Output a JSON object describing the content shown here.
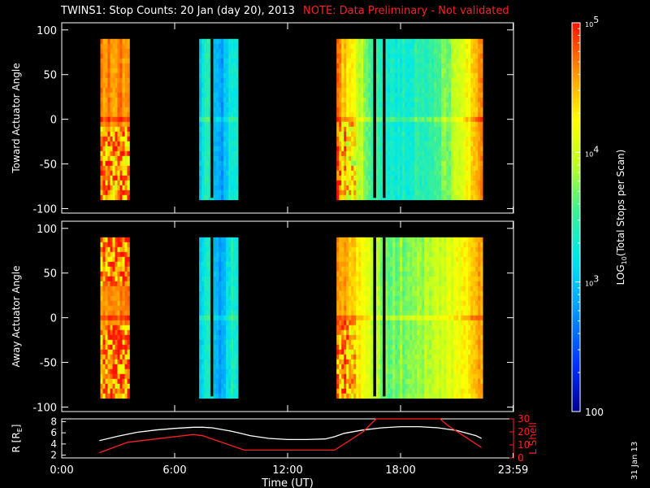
{
  "title": "TWINS1: Stop Counts: 20 Jan (day  20), 2013",
  "note": "NOTE: Data Preliminary - Not validated",
  "stamp": "31 Jan 13",
  "colors": {
    "note": "#ff2020",
    "background": "#000000",
    "axes": "#ffffff",
    "l_shell": "#ff2020",
    "r_line": "#ffffff"
  },
  "chart_data": [
    {
      "type": "heatmap",
      "name": "toward",
      "ylabel": "Toward Actuator Angle",
      "xlim": [
        0,
        24
      ],
      "ylim": [
        -105,
        108
      ],
      "yticks": [
        -100,
        -50,
        0,
        50,
        100
      ],
      "y_extent": [
        -88,
        90
      ],
      "x_ticks_labeled": false,
      "data_blocks": [
        {
          "x_start": 2.05,
          "x_end": 3.55,
          "level": "high",
          "log10_range": [
            4.0,
            5.0
          ]
        },
        {
          "x_start": 7.3,
          "x_end": 9.3,
          "level": "low",
          "log10_range": [
            2.8,
            3.3
          ]
        },
        {
          "x_start": 14.6,
          "x_end": 22.25,
          "level": "mid-low",
          "log10_range": [
            2.8,
            4.7
          ]
        }
      ],
      "gaps": [
        {
          "x_start": 7.9,
          "x_end": 8.05
        },
        {
          "x_start": 16.55,
          "x_end": 16.7
        },
        {
          "x_start": 17.05,
          "x_end": 17.2
        }
      ]
    },
    {
      "type": "heatmap",
      "name": "away",
      "ylabel": "Away Actuator Angle",
      "xlim": [
        0,
        24
      ],
      "ylim": [
        -105,
        108
      ],
      "yticks": [
        -100,
        -50,
        0,
        50,
        100
      ],
      "y_extent": [
        -88,
        90
      ],
      "x_ticks_labeled": false,
      "data_blocks": [
        {
          "x_start": 2.05,
          "x_end": 3.55,
          "level": "high",
          "log10_range": [
            4.0,
            5.0
          ]
        },
        {
          "x_start": 7.3,
          "x_end": 9.3,
          "level": "low",
          "log10_range": [
            2.8,
            4.8
          ]
        },
        {
          "x_start": 14.6,
          "x_end": 22.25,
          "level": "high",
          "log10_range": [
            3.0,
            4.9
          ]
        }
      ],
      "gaps": [
        {
          "x_start": 7.9,
          "x_end": 8.05
        },
        {
          "x_start": 16.55,
          "x_end": 16.7
        },
        {
          "x_start": 17.05,
          "x_end": 17.2
        }
      ]
    },
    {
      "type": "line",
      "name": "orbit",
      "xlabel": "Time (UT)",
      "xlim": [
        0,
        24
      ],
      "xtick_labels": [
        "0:00",
        "6:00",
        "12:00",
        "18:00",
        "23:59"
      ],
      "xtick_values": [
        0,
        6,
        12,
        18,
        23.98
      ],
      "left_axis": {
        "label": "R [R",
        "label_sub": "E",
        "label_close": "]",
        "ylim": [
          1.5,
          8.5
        ],
        "yticks": [
          2,
          4,
          6,
          8
        ]
      },
      "right_axis": {
        "label": "L Shell",
        "ylim": [
          0,
          30
        ],
        "yticks": [
          0,
          10,
          20,
          30
        ]
      },
      "series": [
        {
          "axis": "left",
          "color": "#ffffff",
          "x": [
            2.0,
            3.0,
            4.0,
            5.0,
            6.0,
            7.0,
            7.5,
            8.0,
            9.0,
            9.5,
            10.0,
            11.0,
            12.0,
            13.0,
            14.0,
            14.5,
            15.0,
            16.0,
            17.0,
            18.0,
            19.0,
            20.0,
            21.0,
            22.0,
            22.3
          ],
          "y": [
            4.6,
            5.4,
            6.1,
            6.5,
            6.8,
            7.0,
            7.0,
            6.9,
            6.3,
            5.9,
            5.5,
            5.0,
            4.8,
            4.8,
            4.9,
            5.3,
            5.9,
            6.5,
            6.9,
            7.1,
            7.1,
            6.9,
            6.4,
            5.5,
            5.0
          ]
        },
        {
          "axis": "right",
          "color": "#ff2020",
          "x": [
            2.0,
            3.5,
            7.0,
            7.5,
            9.7,
            14.5,
            16.0,
            16.7,
            18.5,
            20.1,
            20.5,
            22.3
          ],
          "y": [
            4.0,
            12.0,
            18.0,
            17.0,
            6.0,
            6.0,
            20.0,
            30.0,
            30.0,
            30.0,
            25.0,
            8.0
          ]
        }
      ]
    }
  ],
  "colorbar": {
    "label": "LOG",
    "label_sub": "10",
    "label_rest": "(Total Stops per Scan)",
    "range_log10": [
      2,
      5
    ],
    "tick_labels": [
      {
        "log": 5,
        "base": "10",
        "exp": "5"
      },
      {
        "log": 4,
        "base": "10",
        "exp": "4"
      },
      {
        "log": 3,
        "base": "10",
        "exp": "3"
      },
      {
        "log": 2,
        "text": "100"
      }
    ]
  }
}
